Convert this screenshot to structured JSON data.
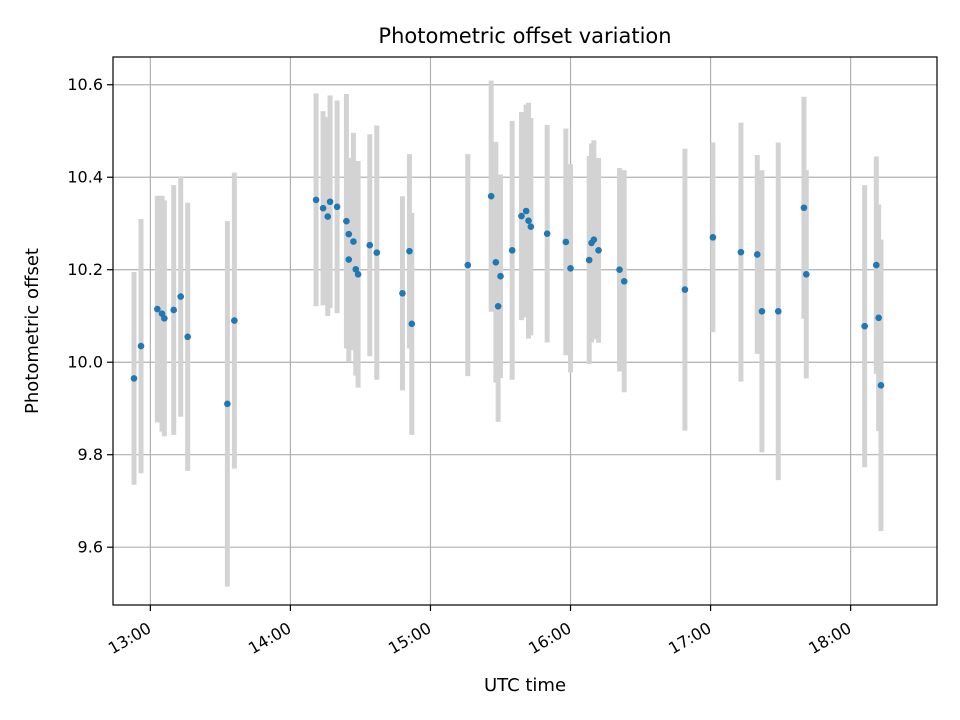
{
  "chart_data": {
    "type": "scatter",
    "title": "Photometric offset variation",
    "xlabel": "UTC time",
    "ylabel": "Photometric offset",
    "x_unit": "UTC time (HH:MM)",
    "xlim": [
      "12:44",
      "18:37"
    ],
    "ylim": [
      9.475,
      10.66
    ],
    "x_ticks": [
      "13:00",
      "14:00",
      "15:00",
      "16:00",
      "17:00",
      "18:00"
    ],
    "y_ticks": [
      9.6,
      9.8,
      10.0,
      10.2,
      10.4,
      10.6
    ],
    "y_tick_labels": [
      "9.6",
      "9.8",
      "10.0",
      "10.2",
      "10.4",
      "10.6"
    ],
    "grid": true,
    "colors": {
      "point": "#1f77b4",
      "errorbar": "#d3d3d3",
      "grid": "#b0b0b0"
    },
    "series": [
      {
        "x": [
          "12:53",
          "12:56",
          "13:03",
          "13:05",
          "13:06",
          "13:10",
          "13:13",
          "13:16",
          "13:33",
          "13:36",
          "14:11",
          "14:14",
          "14:16",
          "14:17",
          "14:20",
          "14:24",
          "14:25",
          "14:25",
          "14:27",
          "14:28",
          "14:29",
          "14:34",
          "14:37",
          "14:48",
          "14:51",
          "14:52",
          "15:16",
          "15:26",
          "15:28",
          "15:29",
          "15:30",
          "15:35",
          "15:39",
          "15:41",
          "15:42",
          "15:43",
          "15:50",
          "15:58",
          "16:00",
          "16:08",
          "16:09",
          "16:10",
          "16:12",
          "16:21",
          "16:23",
          "16:49",
          "17:01",
          "17:13",
          "17:20",
          "17:22",
          "17:29",
          "17:40",
          "17:41",
          "18:06",
          "18:11",
          "18:12"
        ],
        "y": [
          9.965,
          10.035,
          10.115,
          10.105,
          10.095,
          10.113,
          10.142,
          10.055,
          9.91,
          10.09,
          10.351,
          10.333,
          10.315,
          10.347,
          10.336,
          10.305,
          10.277,
          10.222,
          10.261,
          10.201,
          10.19,
          10.253,
          10.237,
          10.149,
          10.24,
          10.083,
          10.21,
          10.359,
          10.216,
          10.121,
          10.186,
          10.242,
          10.316,
          10.327,
          10.306,
          10.293,
          10.278,
          10.26,
          10.203,
          10.221,
          10.258,
          10.265,
          10.242,
          10.2,
          10.175,
          10.157,
          10.27,
          10.238,
          10.233,
          10.11,
          10.11,
          10.334,
          10.19,
          10.078,
          10.21,
          10.096
        ],
        "y_err": [
          0.23,
          0.275,
          0.245,
          0.255,
          0.255,
          0.27,
          0.26,
          0.29,
          0.395,
          0.32,
          0.23,
          0.21,
          0.215,
          0.23,
          0.23,
          0.275,
          0.16,
          0.22,
          0.235,
          0.23,
          0.245,
          0.24,
          0.275,
          0.21,
          0.21,
          0.24,
          0.24,
          0.25,
          0.26,
          0.25,
          0.22,
          0.28,
          0.225,
          0.23,
          0.255,
          0.235,
          0.235,
          0.245,
          0.225,
          0.225,
          0.215,
          0.215,
          0.2,
          0.22,
          0.24,
          0.305,
          0.205,
          0.28,
          0.215,
          0.305,
          0.365,
          0.24,
          0.225,
          0.305,
          0.235,
          0.245
        ]
      },
      {
        "x": [
          "18:13"
        ],
        "y": [
          9.95
        ],
        "y_err": [
          0.315
        ]
      }
    ]
  }
}
